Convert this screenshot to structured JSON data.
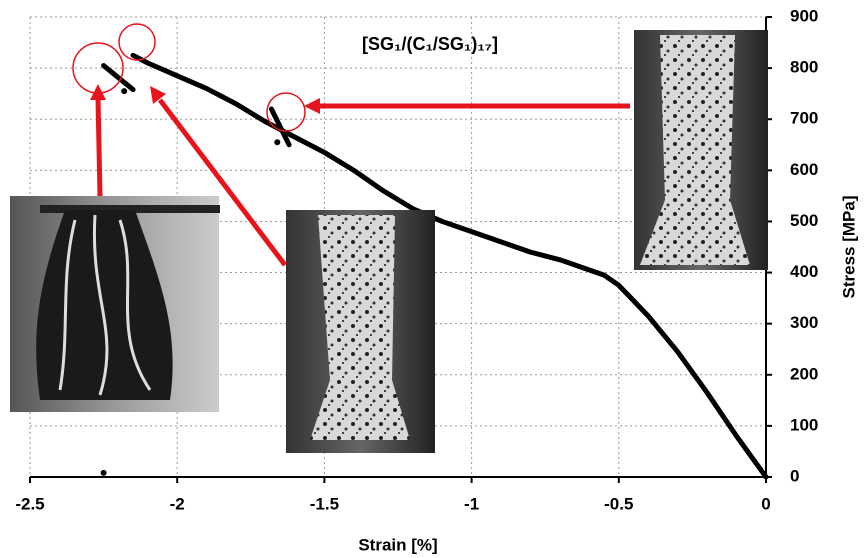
{
  "chart_data": {
    "type": "line",
    "title": "[SG₁/(C₁/SG₁)₁₇]",
    "x_label": "Strain [%]",
    "y_label": "Stress [MPa]",
    "x": [
      0,
      -0.1,
      -0.2,
      -0.3,
      -0.4,
      -0.45,
      -0.5,
      -0.55,
      -0.6,
      -0.7,
      -0.8,
      -0.9,
      -1.0,
      -1.1,
      -1.2,
      -1.3,
      -1.4,
      -1.5,
      -1.6,
      -1.7,
      -1.8,
      -1.9,
      -2.0,
      -2.1,
      -2.15,
      null,
      -1.62,
      -1.68,
      null,
      -2.15,
      -2.25,
      null,
      -1.66,
      null,
      -2.18,
      null,
      -2.25
    ],
    "values": [
      0,
      80,
      165,
      245,
      315,
      345,
      375,
      395,
      405,
      425,
      440,
      460,
      480,
      500,
      525,
      560,
      600,
      635,
      665,
      695,
      730,
      760,
      785,
      810,
      825,
      null,
      650,
      720,
      null,
      758,
      805,
      null,
      655,
      null,
      755,
      null,
      8
    ],
    "color": "#000000",
    "xlim": [
      -2.5,
      0
    ],
    "xticks": [
      -2.5,
      -2,
      -1.5,
      -1,
      -0.5,
      0
    ],
    "ylim": [
      0,
      900
    ],
    "yticks": [
      0,
      100,
      200,
      300,
      400,
      500,
      600,
      700,
      800,
      900
    ],
    "grid": true
  }
}
